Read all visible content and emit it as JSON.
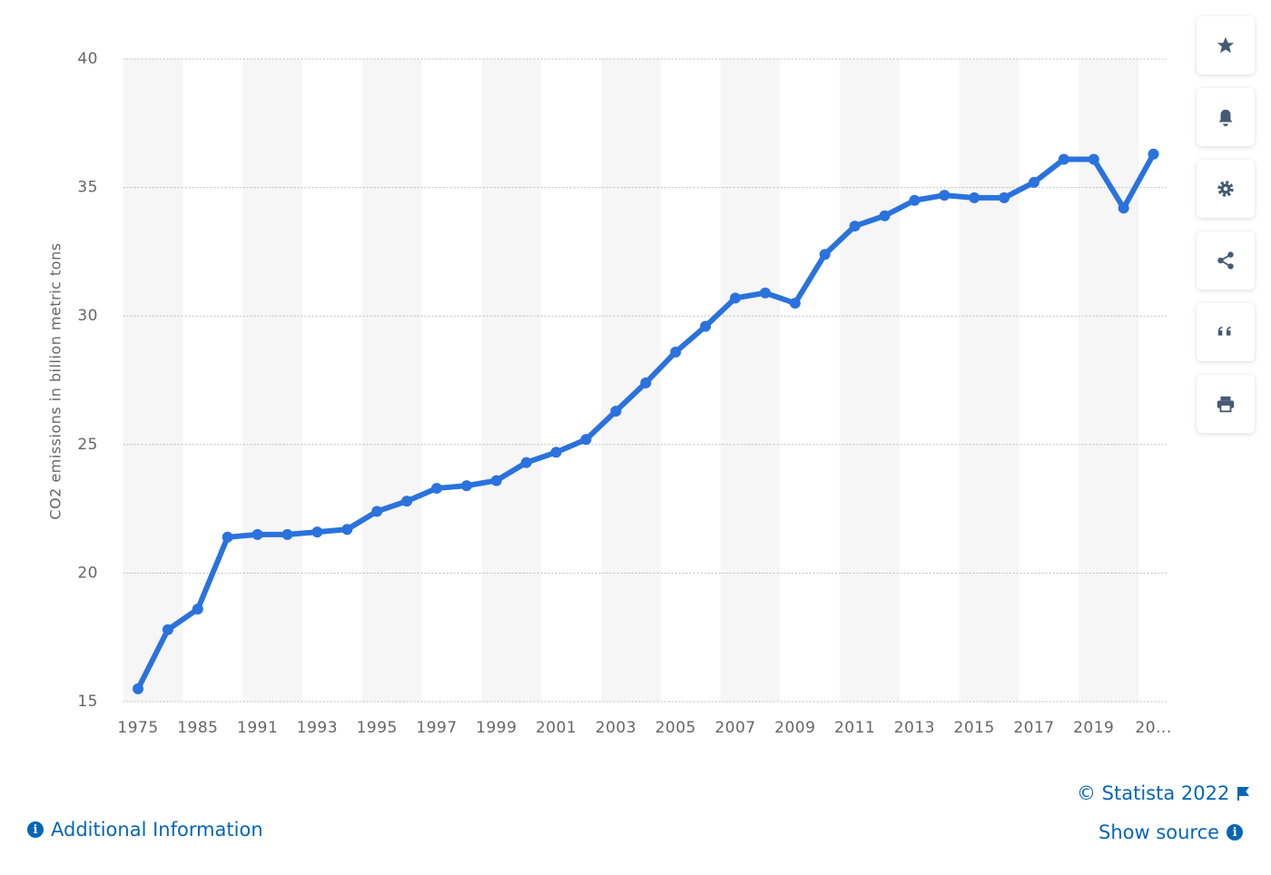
{
  "chart_data": {
    "type": "line",
    "y_axis_label": "CO2 emissions in billion metric tons",
    "categories": [
      "1975",
      null,
      "1985",
      null,
      "1991",
      null,
      "1993",
      null,
      "1995",
      null,
      "1997",
      null,
      "1999",
      null,
      "2001",
      null,
      "2003",
      null,
      "2005",
      null,
      "2007",
      null,
      "2009",
      null,
      "2011",
      null,
      "2013",
      null,
      "2015",
      null,
      "2017",
      null,
      "2019",
      null,
      "20..."
    ],
    "series": [
      {
        "name": "CO2 emissions",
        "color": "#2a72dd",
        "values": [
          15.5,
          17.8,
          18.6,
          21.4,
          21.5,
          21.5,
          21.6,
          21.7,
          22.4,
          22.8,
          23.3,
          23.4,
          23.6,
          24.3,
          24.7,
          25.2,
          26.3,
          27.4,
          28.6,
          29.6,
          30.7,
          30.9,
          30.5,
          32.4,
          33.5,
          33.9,
          34.5,
          34.7,
          34.6,
          34.6,
          35.2,
          36.1,
          36.1,
          34.2,
          36.3
        ]
      }
    ],
    "ylim": [
      15,
      40
    ],
    "yticks": [
      15,
      20,
      25,
      30,
      35,
      40
    ],
    "grid": true,
    "legend": false
  },
  "footer": {
    "copyright": "© Statista 2022",
    "show_source": "Show source",
    "additional_info": "Additional Information"
  }
}
